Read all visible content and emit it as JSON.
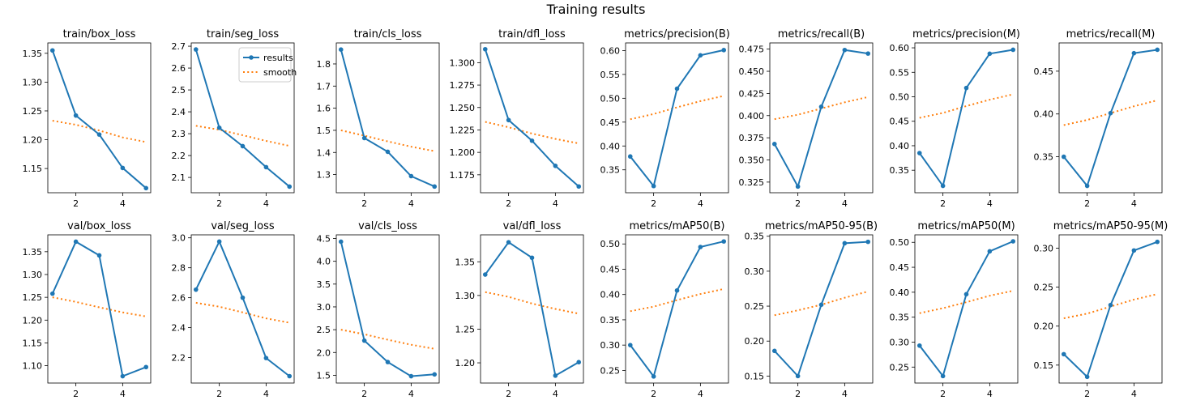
{
  "title": "Training results",
  "legend": {
    "results_label": "results",
    "smooth_label": "smooth"
  },
  "colors": {
    "results": "#1f77b4",
    "smooth": "#ff7f0e"
  },
  "chart_data": [
    {
      "type": "line",
      "title": "train/box_loss",
      "x": [
        1,
        2,
        3,
        4,
        5
      ],
      "series": [
        {
          "name": "results",
          "values": [
            1.355,
            1.242,
            1.209,
            1.151,
            1.116
          ]
        },
        {
          "name": "smooth",
          "values": [
            1.233,
            1.226,
            1.216,
            1.204,
            1.196
          ]
        }
      ],
      "xlim": [
        0.8,
        5.2
      ],
      "ylim": [
        1.108,
        1.368
      ],
      "xticks": [
        2,
        4
      ],
      "yticks": [
        1.15,
        1.2,
        1.25,
        1.3,
        1.35
      ],
      "ytick_labels": [
        "1.15",
        "1.20",
        "1.25",
        "1.30",
        "1.35"
      ]
    },
    {
      "type": "line",
      "title": "train/seg_loss",
      "x": [
        1,
        2,
        3,
        4,
        5
      ],
      "series": [
        {
          "name": "results",
          "values": [
            2.685,
            2.327,
            2.243,
            2.147,
            2.058
          ]
        },
        {
          "name": "smooth",
          "values": [
            2.336,
            2.318,
            2.293,
            2.267,
            2.244
          ]
        }
      ],
      "xlim": [
        0.8,
        5.2
      ],
      "ylim": [
        2.03,
        2.715
      ],
      "xticks": [
        2,
        4
      ],
      "yticks": [
        2.1,
        2.2,
        2.3,
        2.4,
        2.5,
        2.6,
        2.7
      ],
      "ytick_labels": [
        "2.1",
        "2.2",
        "2.3",
        "2.4",
        "2.5",
        "2.6",
        "2.7"
      ],
      "legend": "top-right"
    },
    {
      "type": "line",
      "title": "train/cls_loss",
      "x": [
        1,
        2,
        3,
        4,
        5
      ],
      "series": [
        {
          "name": "results",
          "values": [
            1.865,
            1.465,
            1.403,
            1.293,
            1.246
          ]
        },
        {
          "name": "smooth",
          "values": [
            1.5,
            1.476,
            1.45,
            1.426,
            1.406
          ]
        }
      ],
      "xlim": [
        0.8,
        5.2
      ],
      "ylim": [
        1.218,
        1.895
      ],
      "xticks": [
        2,
        4
      ],
      "yticks": [
        1.3,
        1.4,
        1.5,
        1.6,
        1.7,
        1.8
      ],
      "ytick_labels": [
        "1.3",
        "1.4",
        "1.5",
        "1.6",
        "1.7",
        "1.8"
      ]
    },
    {
      "type": "line",
      "title": "train/dfl_loss",
      "x": [
        1,
        2,
        3,
        4,
        5
      ],
      "series": [
        {
          "name": "results",
          "values": [
            1.315,
            1.236,
            1.213,
            1.185,
            1.162
          ]
        },
        {
          "name": "smooth",
          "values": [
            1.234,
            1.228,
            1.221,
            1.215,
            1.21
          ]
        }
      ],
      "xlim": [
        0.8,
        5.2
      ],
      "ylim": [
        1.155,
        1.322
      ],
      "xticks": [
        2,
        4
      ],
      "yticks": [
        1.175,
        1.2,
        1.225,
        1.25,
        1.275,
        1.3
      ],
      "ytick_labels": [
        "1.175",
        "1.200",
        "1.225",
        "1.250",
        "1.275",
        "1.300"
      ]
    },
    {
      "type": "line",
      "title": "metrics/precision(B)",
      "x": [
        1,
        2,
        3,
        4,
        5
      ],
      "series": [
        {
          "name": "results",
          "values": [
            0.378,
            0.316,
            0.52,
            0.59,
            0.601
          ]
        },
        {
          "name": "smooth",
          "values": [
            0.456,
            0.467,
            0.481,
            0.494,
            0.505
          ]
        }
      ],
      "xlim": [
        0.8,
        5.2
      ],
      "ylim": [
        0.302,
        0.616
      ],
      "xticks": [
        2,
        4
      ],
      "yticks": [
        0.35,
        0.4,
        0.45,
        0.5,
        0.55,
        0.6
      ],
      "ytick_labels": [
        "0.35",
        "0.40",
        "0.45",
        "0.50",
        "0.55",
        "0.60"
      ]
    },
    {
      "type": "line",
      "title": "metrics/recall(B)",
      "x": [
        1,
        2,
        3,
        4,
        5
      ],
      "series": [
        {
          "name": "results",
          "values": [
            0.368,
            0.32,
            0.41,
            0.474,
            0.47
          ]
        },
        {
          "name": "smooth",
          "values": [
            0.396,
            0.401,
            0.408,
            0.415,
            0.421
          ]
        }
      ],
      "xlim": [
        0.8,
        5.2
      ],
      "ylim": [
        0.313,
        0.482
      ],
      "xticks": [
        2,
        4
      ],
      "yticks": [
        0.325,
        0.35,
        0.375,
        0.4,
        0.425,
        0.45,
        0.475
      ],
      "ytick_labels": [
        "0.325",
        "0.350",
        "0.375",
        "0.400",
        "0.425",
        "0.450",
        "0.475"
      ]
    },
    {
      "type": "line",
      "title": "metrics/precision(M)",
      "x": [
        1,
        2,
        3,
        4,
        5
      ],
      "series": [
        {
          "name": "results",
          "values": [
            0.385,
            0.318,
            0.518,
            0.588,
            0.596
          ]
        },
        {
          "name": "smooth",
          "values": [
            0.457,
            0.467,
            0.481,
            0.494,
            0.505
          ]
        }
      ],
      "xlim": [
        0.8,
        5.2
      ],
      "ylim": [
        0.304,
        0.61
      ],
      "xticks": [
        2,
        4
      ],
      "yticks": [
        0.35,
        0.4,
        0.45,
        0.5,
        0.55,
        0.6
      ],
      "ytick_labels": [
        "0.35",
        "0.40",
        "0.45",
        "0.50",
        "0.55",
        "0.60"
      ]
    },
    {
      "type": "line",
      "title": "metrics/recall(M)",
      "x": [
        1,
        2,
        3,
        4,
        5
      ],
      "series": [
        {
          "name": "results",
          "values": [
            0.35,
            0.316,
            0.401,
            0.471,
            0.475
          ]
        },
        {
          "name": "smooth",
          "values": [
            0.387,
            0.393,
            0.401,
            0.409,
            0.416
          ]
        }
      ],
      "xlim": [
        0.8,
        5.2
      ],
      "ylim": [
        0.308,
        0.483
      ],
      "xticks": [
        2,
        4
      ],
      "yticks": [
        0.35,
        0.4,
        0.45
      ],
      "ytick_labels": [
        "0.35",
        "0.40",
        "0.45"
      ]
    },
    {
      "type": "line",
      "title": "val/box_loss",
      "x": [
        1,
        2,
        3,
        4,
        5
      ],
      "series": [
        {
          "name": "results",
          "values": [
            1.258,
            1.372,
            1.342,
            1.077,
            1.097
          ]
        },
        {
          "name": "smooth",
          "values": [
            1.25,
            1.24,
            1.228,
            1.217,
            1.208
          ]
        }
      ],
      "xlim": [
        0.8,
        5.2
      ],
      "ylim": [
        1.062,
        1.387
      ],
      "xticks": [
        2,
        4
      ],
      "yticks": [
        1.1,
        1.15,
        1.2,
        1.25,
        1.3,
        1.35
      ],
      "ytick_labels": [
        "1.10",
        "1.15",
        "1.20",
        "1.25",
        "1.30",
        "1.35"
      ]
    },
    {
      "type": "line",
      "title": "val/seg_loss",
      "x": [
        1,
        2,
        3,
        4,
        5
      ],
      "series": [
        {
          "name": "results",
          "values": [
            2.654,
            2.975,
            2.6,
            2.197,
            2.076
          ]
        },
        {
          "name": "smooth",
          "values": [
            2.566,
            2.54,
            2.502,
            2.462,
            2.433
          ]
        }
      ],
      "xlim": [
        0.8,
        5.2
      ],
      "ylim": [
        2.03,
        3.02
      ],
      "xticks": [
        2,
        4
      ],
      "yticks": [
        2.2,
        2.4,
        2.6,
        2.8,
        3.0
      ],
      "ytick_labels": [
        "2.2",
        "2.4",
        "2.6",
        "2.8",
        "3.0"
      ]
    },
    {
      "type": "line",
      "title": "val/cls_loss",
      "x": [
        1,
        2,
        3,
        4,
        5
      ],
      "series": [
        {
          "name": "results",
          "values": [
            4.43,
            2.26,
            1.79,
            1.48,
            1.52
          ]
        },
        {
          "name": "smooth",
          "values": [
            2.5,
            2.4,
            2.28,
            2.17,
            2.08
          ]
        }
      ],
      "xlim": [
        0.8,
        5.2
      ],
      "ylim": [
        1.33,
        4.58
      ],
      "xticks": [
        2,
        4
      ],
      "yticks": [
        1.5,
        2,
        2.5,
        3,
        3.5,
        4,
        4.5
      ],
      "ytick_labels": [
        "1.5",
        "2.0",
        "2.5",
        "3.0",
        "3.5",
        "4.0",
        "4.5"
      ]
    },
    {
      "type": "line",
      "title": "val/dfl_loss",
      "x": [
        1,
        2,
        3,
        4,
        5
      ],
      "series": [
        {
          "name": "results",
          "values": [
            1.331,
            1.379,
            1.356,
            1.181,
            1.201
          ]
        },
        {
          "name": "smooth",
          "values": [
            1.305,
            1.298,
            1.288,
            1.28,
            1.273
          ]
        }
      ],
      "xlim": [
        0.8,
        5.2
      ],
      "ylim": [
        1.17,
        1.39
      ],
      "xticks": [
        2,
        4
      ],
      "yticks": [
        1.2,
        1.25,
        1.3,
        1.35
      ],
      "ytick_labels": [
        "1.20",
        "1.25",
        "1.30",
        "1.35"
      ]
    },
    {
      "type": "line",
      "title": "metrics/mAP50(B)",
      "x": [
        1,
        2,
        3,
        4,
        5
      ],
      "series": [
        {
          "name": "results",
          "values": [
            0.3,
            0.238,
            0.408,
            0.494,
            0.505
          ]
        },
        {
          "name": "smooth",
          "values": [
            0.367,
            0.376,
            0.389,
            0.401,
            0.411
          ]
        }
      ],
      "xlim": [
        0.8,
        5.2
      ],
      "ylim": [
        0.225,
        0.518
      ],
      "xticks": [
        2,
        4
      ],
      "yticks": [
        0.25,
        0.3,
        0.35,
        0.4,
        0.45,
        0.5
      ],
      "ytick_labels": [
        "0.25",
        "0.30",
        "0.35",
        "0.40",
        "0.45",
        "0.50"
      ]
    },
    {
      "type": "line",
      "title": "metrics/mAP50-95(B)",
      "x": [
        1,
        2,
        3,
        4,
        5
      ],
      "series": [
        {
          "name": "results",
          "values": [
            0.186,
            0.15,
            0.252,
            0.34,
            0.342
          ]
        },
        {
          "name": "smooth",
          "values": [
            0.237,
            0.244,
            0.252,
            0.262,
            0.271
          ]
        }
      ],
      "xlim": [
        0.8,
        5.2
      ],
      "ylim": [
        0.14,
        0.352
      ],
      "xticks": [
        2,
        4
      ],
      "yticks": [
        0.15,
        0.2,
        0.25,
        0.3,
        0.35
      ],
      "ytick_labels": [
        "0.15",
        "0.20",
        "0.25",
        "0.30",
        "0.35"
      ]
    },
    {
      "type": "line",
      "title": "metrics/mAP50(M)",
      "x": [
        1,
        2,
        3,
        4,
        5
      ],
      "series": [
        {
          "name": "results",
          "values": [
            0.293,
            0.232,
            0.396,
            0.482,
            0.502
          ]
        },
        {
          "name": "smooth",
          "values": [
            0.358,
            0.368,
            0.38,
            0.393,
            0.403
          ]
        }
      ],
      "xlim": [
        0.8,
        5.2
      ],
      "ylim": [
        0.218,
        0.515
      ],
      "xticks": [
        2,
        4
      ],
      "yticks": [
        0.25,
        0.3,
        0.35,
        0.4,
        0.45,
        0.5
      ],
      "ytick_labels": [
        "0.25",
        "0.30",
        "0.35",
        "0.40",
        "0.45",
        "0.50"
      ]
    },
    {
      "type": "line",
      "title": "metrics/mAP50-95(M)",
      "x": [
        1,
        2,
        3,
        4,
        5
      ],
      "series": [
        {
          "name": "results",
          "values": [
            0.164,
            0.135,
            0.227,
            0.297,
            0.308
          ]
        },
        {
          "name": "smooth",
          "values": [
            0.21,
            0.216,
            0.225,
            0.234,
            0.241
          ]
        }
      ],
      "xlim": [
        0.8,
        5.2
      ],
      "ylim": [
        0.127,
        0.317
      ],
      "xticks": [
        2,
        4
      ],
      "yticks": [
        0.15,
        0.2,
        0.25,
        0.3
      ],
      "ytick_labels": [
        "0.15",
        "0.20",
        "0.25",
        "0.30"
      ]
    }
  ]
}
